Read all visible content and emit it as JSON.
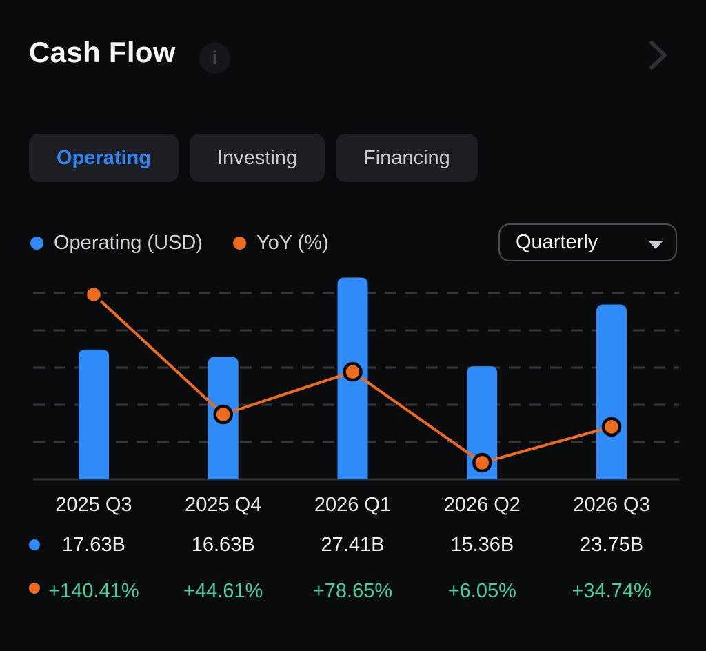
{
  "header": {
    "title": "Cash Flow"
  },
  "tabs": {
    "items": [
      {
        "label": "Operating",
        "active": true
      },
      {
        "label": "Investing",
        "active": false
      },
      {
        "label": "Financing",
        "active": false
      }
    ]
  },
  "legend": {
    "items": [
      {
        "label": "Operating (USD)",
        "color": "#2e8bf7"
      },
      {
        "label": "YoY (%)",
        "color": "#ed6b1f"
      }
    ]
  },
  "controls": {
    "period_dropdown": {
      "value": "Quarterly"
    }
  },
  "colors": {
    "background": "#0a0b0d",
    "bar_blue": "#2e8bf7",
    "line_orange": "#ed6b1f",
    "positive_green": "#45d0a0",
    "active_tab_blue": "#3184f2",
    "gridline": "#34363a",
    "baseline": "#323438"
  },
  "chart_data": {
    "type": "bar",
    "subtype": "bar+line combo, horizontal dashed grid, no y-axis labels",
    "title": "Cash Flow — Operating",
    "categories": [
      "2025 Q3",
      "2025 Q4",
      "2026 Q1",
      "2026 Q2",
      "2026 Q3"
    ],
    "series": [
      {
        "name": "Operating (USD)",
        "type": "bar",
        "color": "#2e8bf7",
        "unit": "billions USD",
        "values": [
          17.63,
          16.63,
          27.41,
          15.36,
          23.75
        ],
        "labels": [
          "17.63B",
          "16.63B",
          "27.41B",
          "15.36B",
          "23.75B"
        ]
      },
      {
        "name": "YoY (%)",
        "type": "line",
        "color": "#ed6b1f",
        "unit": "percent",
        "values": [
          140.41,
          44.61,
          78.65,
          6.05,
          34.74
        ],
        "labels": [
          "+140.41%",
          "+44.61%",
          "+78.65%",
          "+6.05%",
          "+34.74%"
        ]
      }
    ],
    "grid": "on",
    "legend_position": "top-left",
    "y_axis_ticks_visible": false
  }
}
